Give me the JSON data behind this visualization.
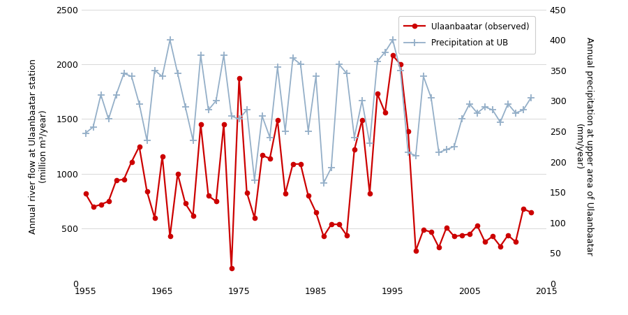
{
  "years_flow": [
    1955,
    1956,
    1957,
    1958,
    1959,
    1960,
    1961,
    1962,
    1963,
    1964,
    1965,
    1966,
    1967,
    1968,
    1969,
    1970,
    1971,
    1972,
    1973,
    1974,
    1975,
    1976,
    1977,
    1978,
    1979,
    1980,
    1981,
    1982,
    1983,
    1984,
    1985,
    1986,
    1987,
    1988,
    1989,
    1990,
    1991,
    1992,
    1993,
    1994,
    1995,
    1996,
    1997,
    1998,
    1999,
    2000,
    2001,
    2002,
    2003,
    2004,
    2005,
    2006,
    2007,
    2008,
    2009,
    2010,
    2011,
    2012,
    2013
  ],
  "flow": [
    820,
    700,
    720,
    750,
    940,
    950,
    1110,
    1250,
    840,
    600,
    1160,
    430,
    1000,
    730,
    620,
    1450,
    800,
    750,
    1450,
    140,
    1870,
    830,
    600,
    1170,
    1140,
    1490,
    820,
    1090,
    1090,
    800,
    650,
    430,
    540,
    540,
    440,
    1220,
    1490,
    820,
    1730,
    1560,
    2080,
    2000,
    1390,
    300,
    490,
    470,
    330,
    510,
    430,
    440,
    450,
    530,
    380,
    430,
    340,
    440,
    380,
    680,
    650
  ],
  "years_precip": [
    1955,
    1956,
    1957,
    1958,
    1959,
    1960,
    1961,
    1962,
    1963,
    1964,
    1965,
    1966,
    1967,
    1968,
    1969,
    1970,
    1971,
    1972,
    1973,
    1974,
    1975,
    1976,
    1977,
    1978,
    1979,
    1980,
    1981,
    1982,
    1983,
    1984,
    1985,
    1986,
    1987,
    1988,
    1989,
    1990,
    1991,
    1992,
    1993,
    1994,
    1995,
    1996,
    1997,
    1998,
    1999,
    2000,
    2001,
    2002,
    2003,
    2004,
    2005,
    2006,
    2007,
    2008,
    2009,
    2010,
    2011,
    2012,
    2013
  ],
  "precip": [
    247,
    257,
    310,
    270,
    310,
    345,
    340,
    295,
    235,
    350,
    340,
    400,
    345,
    290,
    235,
    375,
    285,
    300,
    375,
    275,
    270,
    285,
    170,
    275,
    240,
    355,
    250,
    370,
    360,
    250,
    340,
    165,
    190,
    360,
    345,
    240,
    300,
    230,
    365,
    380,
    400,
    350,
    215,
    210,
    340,
    305,
    215,
    220,
    225,
    270,
    295,
    280,
    290,
    285,
    265,
    295,
    280,
    285,
    305
  ],
  "flow_color": "#cc0000",
  "precip_color": "#94afc8",
  "flow_label": "Ulaanbaatar (observed)",
  "precip_label": "Precipitation at UB",
  "ylabel_left": "Annual river flow at Ulaanbaatar station\n(million m³/year)",
  "ylabel_right": "Annual precipitation at upper area of Ulaanbaatar\n(mm/year)",
  "xlim": [
    1954.5,
    2015
  ],
  "ylim_left": [
    0,
    2500
  ],
  "ylim_right": [
    0,
    450
  ],
  "xticks": [
    1955,
    1965,
    1975,
    1985,
    1995,
    2005,
    2015
  ],
  "yticks_left": [
    0,
    500,
    1000,
    1500,
    2000,
    2500
  ],
  "yticks_right": [
    0,
    50,
    100,
    150,
    200,
    250,
    300,
    350,
    400,
    450
  ],
  "bg_color": "#ffffff",
  "grid_color": "#d8d8d8"
}
